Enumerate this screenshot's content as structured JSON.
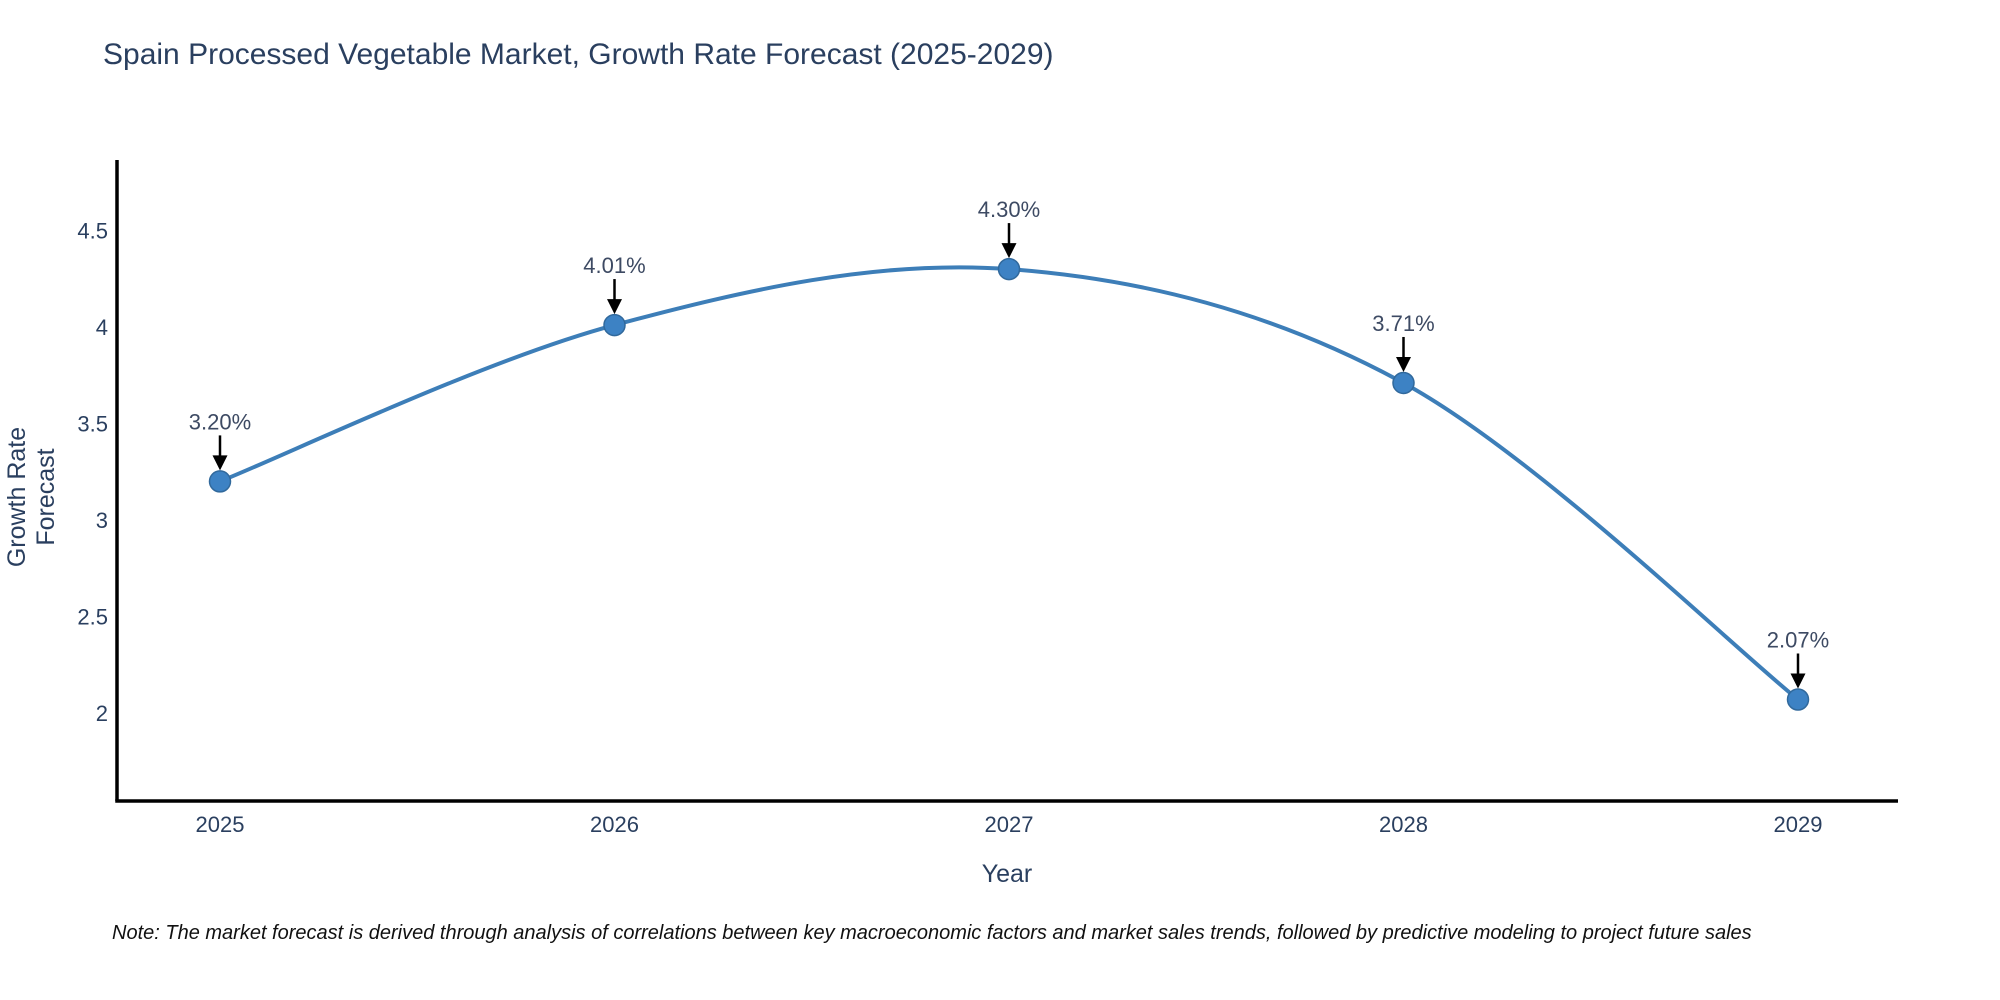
{
  "title": "Spain Processed Vegetable Market, Growth Rate Forecast (2025-2029)",
  "note": "Note: The market forecast is derived through analysis of correlations between key macroeconomic factors and market sales trends, followed by predictive modeling to project future sales",
  "chart_data": {
    "type": "line",
    "line_shape": "spline",
    "x": [
      2025,
      2026,
      2027,
      2028,
      2029
    ],
    "values": [
      3.2,
      4.01,
      4.3,
      3.71,
      2.07
    ],
    "point_labels": [
      "3.20%",
      "4.01%",
      "4.30%",
      "3.71%",
      "2.07%"
    ],
    "title": "Spain Processed Vegetable Market, Growth Rate Forecast (2025-2029)",
    "xlabel": "Year",
    "ylabel": "Growth Rate Forecast",
    "yticks": [
      2,
      2.5,
      3,
      3.5,
      4,
      4.5
    ],
    "ylim": [
      1.54,
      4.87
    ],
    "grid": false,
    "legend": "none",
    "colors": {
      "line": "#3d7eb8",
      "marker_fill": "#3d82c4",
      "marker_border": "#31699c",
      "axis_line": "#000000",
      "axis_text": "#2a3f5f",
      "annotation_text": "#3d4a63",
      "arrow": "#000000",
      "background": "#ffffff"
    }
  }
}
